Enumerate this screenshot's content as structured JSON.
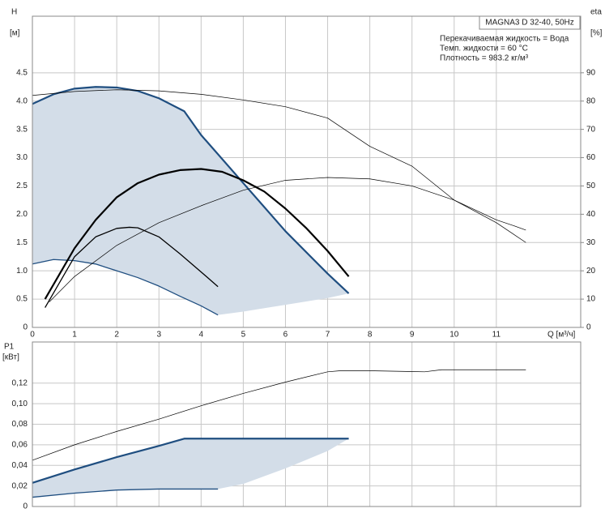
{
  "chart_data": [
    {
      "type": "line",
      "xlabel": "Q [м³/ч]",
      "ylabel": "H",
      "yunit": "[м]",
      "y2label": "eta",
      "y2unit": "[%]",
      "box_title": "MAGNA3 D 32-40, 50Hz",
      "annotations": [
        "Перекачиваемая жидкость = Вода",
        "Темп. жидкости = 60 °C",
        "Плотность = 983.2 кг/м³"
      ],
      "xlim": [
        0,
        13
      ],
      "xticks": [
        0,
        1,
        2,
        3,
        4,
        5,
        6,
        7,
        8,
        9,
        10,
        11
      ],
      "ylim": [
        0,
        5.5
      ],
      "yticks": [
        0,
        0.5,
        {
          "value": 1,
          "label": "1.0"
        },
        1.5,
        {
          "value": 2,
          "label": "2.0"
        },
        2.5,
        {
          "value": 3,
          "label": "3.0"
        },
        3.5,
        {
          "value": 4,
          "label": "4.0"
        },
        4.5
      ],
      "y2lim": [
        0,
        110
      ],
      "y2ticks": [
        0,
        10,
        20,
        30,
        40,
        50,
        60,
        70,
        80,
        90
      ],
      "grid": true,
      "show_xtick_labels": true,
      "series": [
        {
          "kind": "area",
          "color": "#d3dde8",
          "x": [
            0,
            0.5,
            1,
            1.5,
            2,
            2.5,
            3,
            3.6,
            4,
            5,
            6,
            7,
            7.5,
            7,
            6,
            5,
            4.4,
            4,
            3.5,
            3,
            2.5,
            2,
            1.5,
            1,
            0.5,
            0
          ],
          "values": [
            3.95,
            4.12,
            4.22,
            4.25,
            4.24,
            4.18,
            4.05,
            3.82,
            3.4,
            2.55,
            1.7,
            0.95,
            0.6,
            0.52,
            0.4,
            0.28,
            0.22,
            0.38,
            0.55,
            0.73,
            0.88,
            1.0,
            1.12,
            1.18,
            1.2,
            1.12
          ]
        },
        {
          "kind": "line",
          "color": "#1f4e80",
          "width": 2.2,
          "x": [
            0,
            0.5,
            1,
            1.5,
            2,
            2.5,
            3,
            3.6,
            4,
            5,
            6,
            7,
            7.5
          ],
          "values": [
            3.95,
            4.12,
            4.22,
            4.25,
            4.24,
            4.18,
            4.05,
            3.82,
            3.4,
            2.55,
            1.7,
            0.95,
            0.6
          ]
        },
        {
          "kind": "line",
          "color": "#1f4e80",
          "width": 1.3,
          "x": [
            0,
            0.5,
            1,
            1.5,
            2,
            2.5,
            3,
            3.5,
            4,
            4.4
          ],
          "values": [
            1.12,
            1.2,
            1.18,
            1.12,
            1.0,
            0.88,
            0.73,
            0.55,
            0.38,
            0.22
          ]
        },
        {
          "kind": "line",
          "color": "#000000",
          "width": 2.2,
          "x": [
            0.3,
            1,
            1.5,
            2,
            2.5,
            3,
            3.5,
            4,
            4.5,
            5,
            5.5,
            6,
            6.5,
            7,
            7.5
          ],
          "values": [
            0.5,
            1.4,
            1.9,
            2.3,
            2.55,
            2.7,
            2.78,
            2.8,
            2.75,
            2.6,
            2.4,
            2.1,
            1.75,
            1.35,
            0.9
          ]
        },
        {
          "kind": "line",
          "color": "#000000",
          "width": 1.3,
          "x": [
            0.3,
            1,
            1.5,
            2,
            2.3,
            2.5,
            3,
            3.5,
            4,
            4.4
          ],
          "values": [
            0.35,
            1.25,
            1.6,
            1.75,
            1.77,
            1.76,
            1.6,
            1.3,
            0.98,
            0.72
          ]
        },
        {
          "kind": "line",
          "color": "#000000",
          "width": 0.7,
          "x": [
            0,
            1,
            2,
            3,
            4,
            5,
            6,
            7,
            7.3,
            8,
            9,
            10,
            11,
            11.4,
            11.7
          ],
          "values": [
            4.1,
            4.17,
            4.2,
            4.18,
            4.12,
            4.02,
            3.9,
            3.7,
            3.55,
            3.2,
            2.85,
            2.25,
            1.9,
            1.8,
            1.72
          ]
        },
        {
          "kind": "line",
          "color": "#000000",
          "width": 0.7,
          "axis": "y2",
          "x": [
            0.4,
            1,
            2,
            3,
            4,
            5,
            6,
            7,
            8,
            9,
            10,
            11,
            11.7
          ],
          "values": [
            9,
            18,
            29,
            37,
            43,
            48.5,
            52,
            53,
            52.5,
            50,
            45,
            37,
            30
          ]
        }
      ]
    },
    {
      "type": "line",
      "ylabel": "P1",
      "yunit": "[кВт]",
      "xlim": [
        0,
        13
      ],
      "xticks": [
        0,
        1,
        2,
        3,
        4,
        5,
        6,
        7,
        8,
        9,
        10,
        11
      ],
      "ylim": [
        0,
        0.16
      ],
      "yticks": [
        0,
        {
          "value": 0.02,
          "label": "0,02"
        },
        {
          "value": 0.04,
          "label": "0,04"
        },
        {
          "value": 0.06,
          "label": "0,06"
        },
        {
          "value": 0.08,
          "label": "0,08"
        },
        {
          "value": 0.1,
          "label": "0,10"
        },
        {
          "value": 0.12,
          "label": "0,12"
        }
      ],
      "grid": true,
      "show_xtick_labels": false,
      "series": [
        {
          "kind": "area",
          "color": "#d3dde8",
          "x": [
            0,
            1,
            2,
            3,
            3.6,
            5,
            7.5,
            7,
            6,
            5,
            4.4,
            4,
            3,
            2,
            1,
            0
          ],
          "values": [
            0.023,
            0.036,
            0.048,
            0.059,
            0.066,
            0.066,
            0.066,
            0.054,
            0.037,
            0.022,
            0.017,
            0.017,
            0.017,
            0.016,
            0.013,
            0.009
          ]
        },
        {
          "kind": "line",
          "color": "#1f4e80",
          "width": 2.2,
          "x": [
            0,
            1,
            2,
            3,
            3.6,
            5,
            7.5
          ],
          "values": [
            0.023,
            0.036,
            0.048,
            0.059,
            0.066,
            0.066,
            0.066
          ]
        },
        {
          "kind": "line",
          "color": "#1f4e80",
          "width": 1.3,
          "x": [
            0,
            1,
            2,
            3,
            4,
            4.4
          ],
          "values": [
            0.009,
            0.013,
            0.016,
            0.017,
            0.017,
            0.017
          ]
        },
        {
          "kind": "line",
          "color": "#000000",
          "width": 0.7,
          "x": [
            0,
            1,
            2,
            3,
            4,
            5,
            6,
            7,
            7.3,
            8,
            9.3,
            9.7,
            11.7
          ],
          "values": [
            0.045,
            0.06,
            0.073,
            0.085,
            0.098,
            0.11,
            0.121,
            0.131,
            0.132,
            0.132,
            0.131,
            0.133,
            0.133
          ]
        }
      ]
    }
  ]
}
